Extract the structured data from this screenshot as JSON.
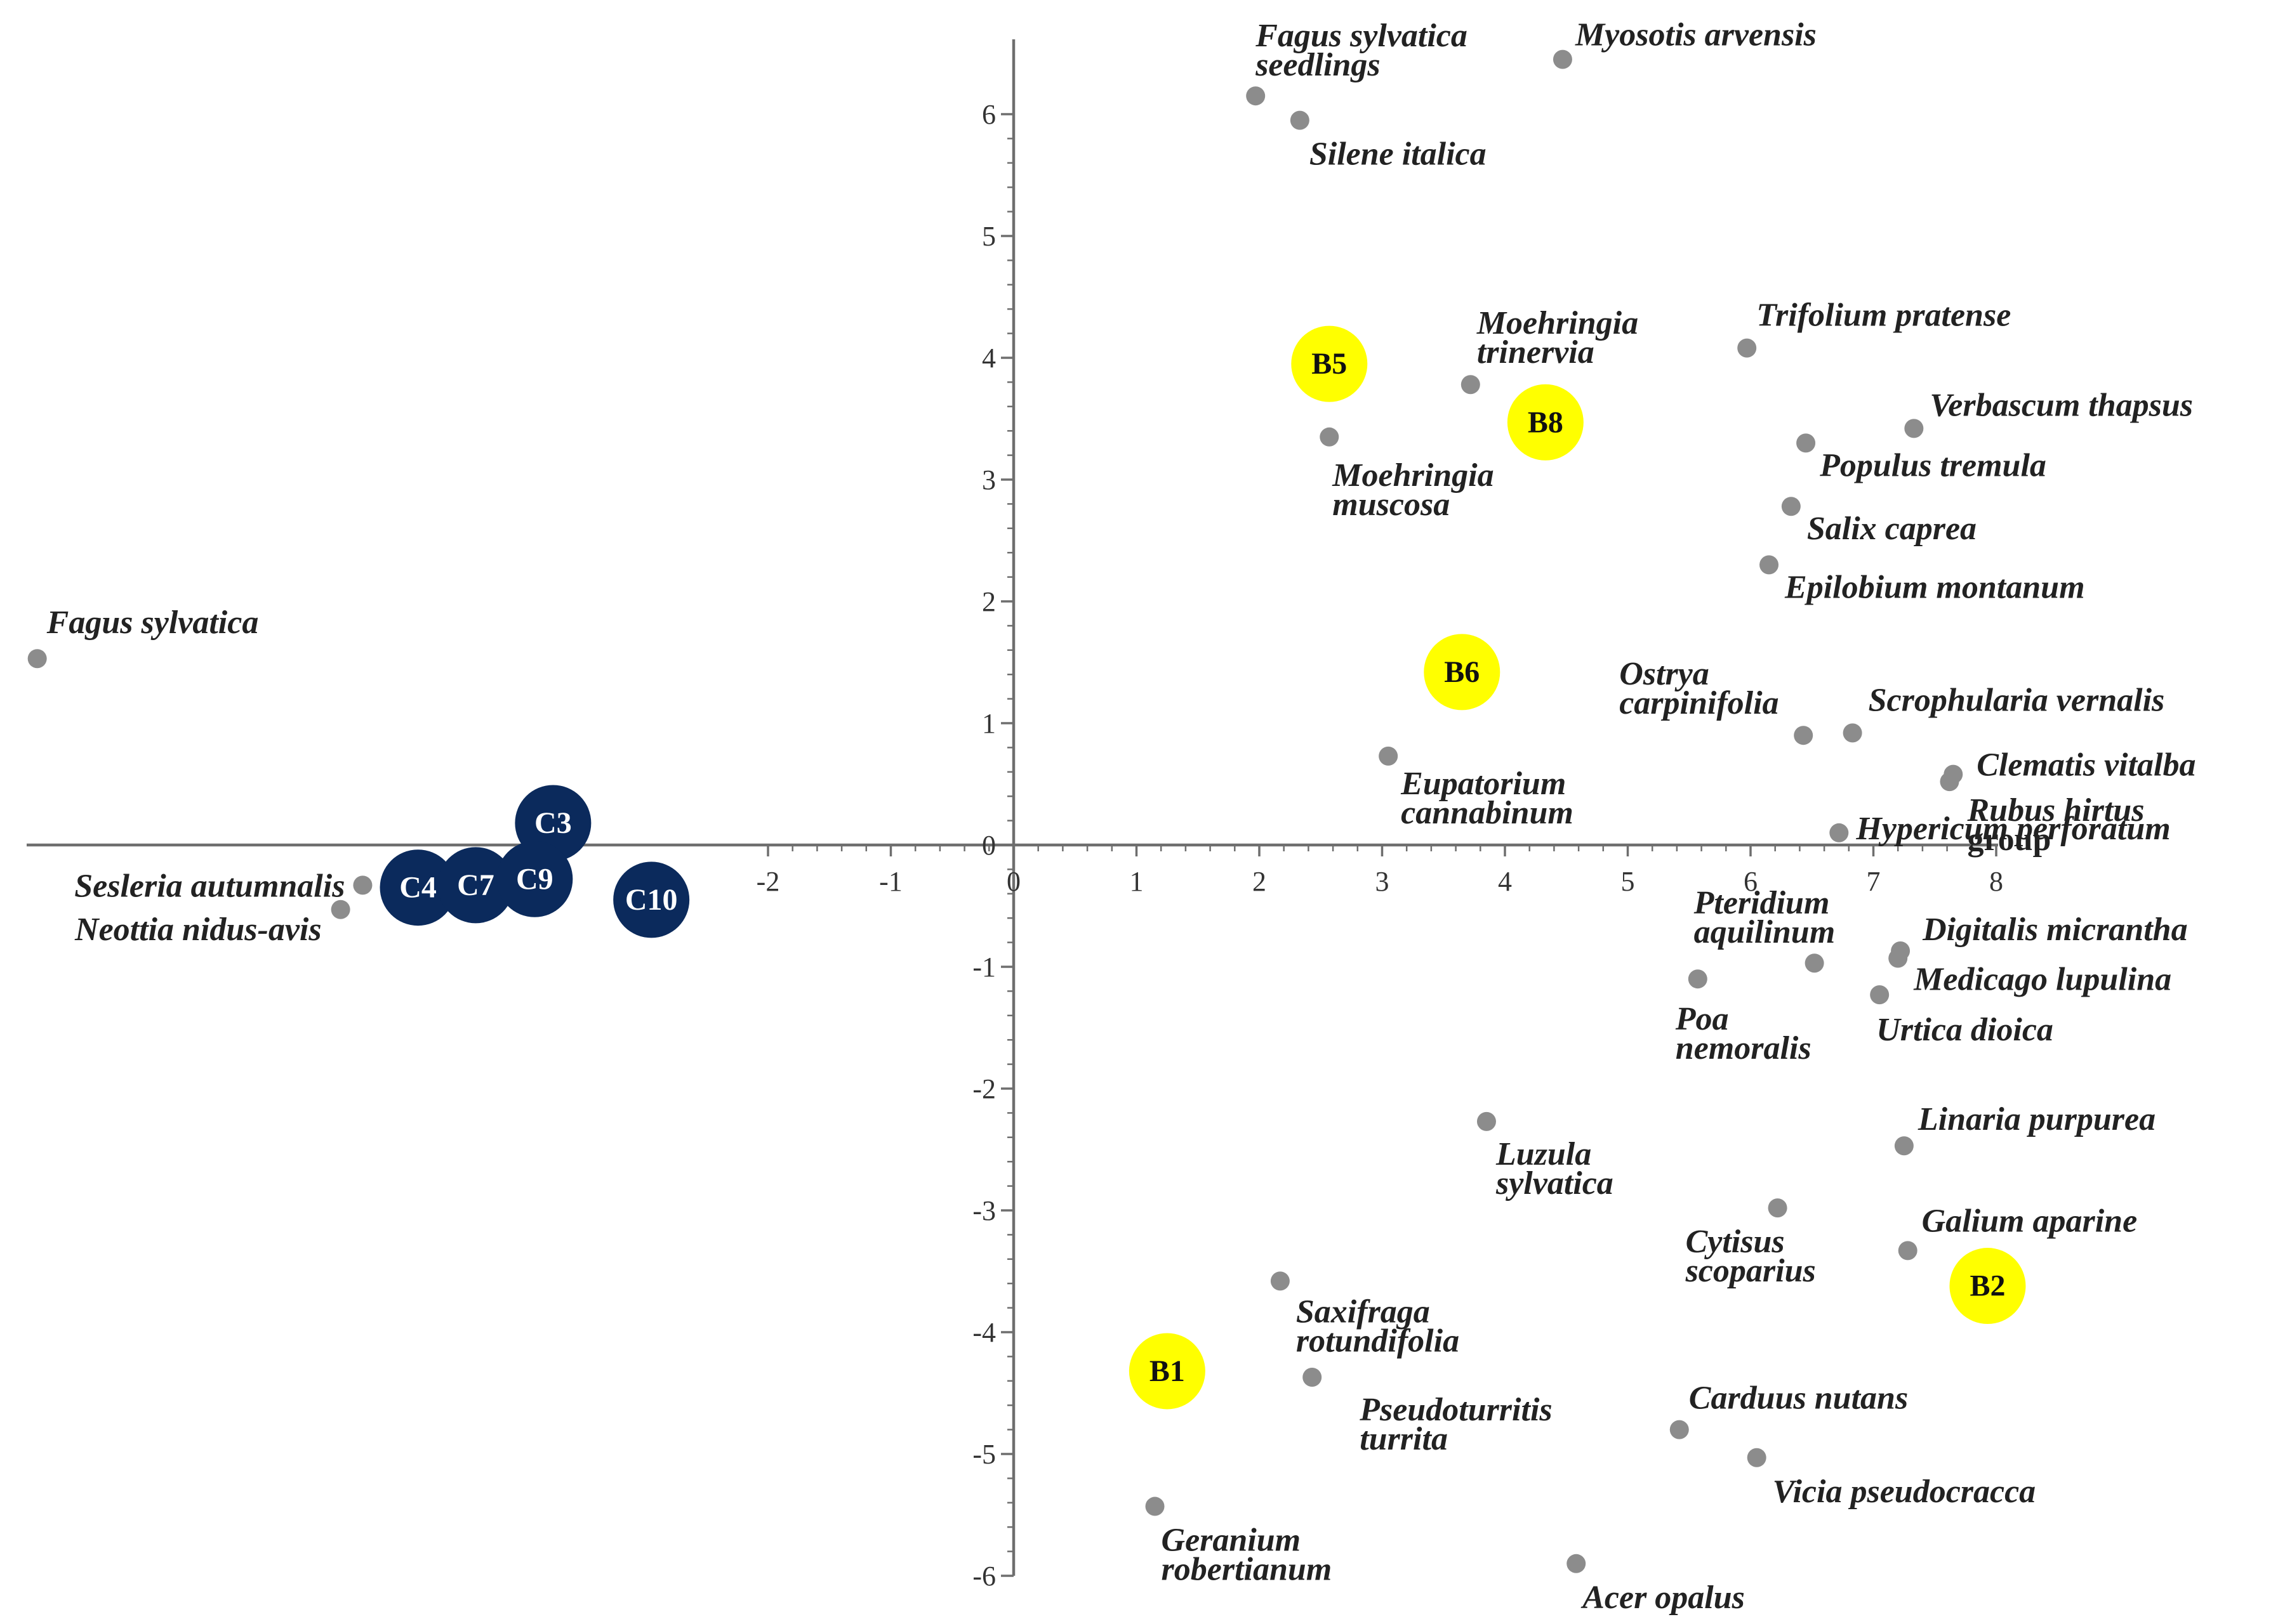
{
  "chart_data": {
    "type": "scatter",
    "title": "",
    "xlabel": "",
    "ylabel": "",
    "xlim": [
      -8,
      8
    ],
    "ylim": [
      -6,
      6.5
    ],
    "x_ticks": [
      -2,
      -1,
      0,
      1,
      2,
      3,
      4,
      5,
      6,
      7,
      8
    ],
    "y_ticks": [
      -6,
      -5,
      -4,
      -3,
      -2,
      -1,
      0,
      1,
      2,
      3,
      4,
      5,
      6
    ],
    "colors": {
      "species_point": "#8c8c8c",
      "site_b": "#ffff00",
      "site_c": "#0b2a5c",
      "site_b_text": "#111111",
      "site_c_text": "#ffffff",
      "axis": "#6e6e6e"
    },
    "species": [
      {
        "lines": [
          "Fagus sylvatica",
          "seedlings"
        ],
        "x": 1.97,
        "y": 6.15
      },
      {
        "lines": [
          "Myosotis arvensis"
        ],
        "x": 4.47,
        "y": 6.45
      },
      {
        "lines": [
          "Silene italica"
        ],
        "x": 2.33,
        "y": 5.95
      },
      {
        "lines": [
          "Moehringia",
          "trinervia"
        ],
        "x": 3.72,
        "y": 3.78
      },
      {
        "lines": [
          "Trifolium pratense"
        ],
        "x": 5.97,
        "y": 4.08
      },
      {
        "lines": [
          "Verbascum thapsus"
        ],
        "x": 7.33,
        "y": 3.42
      },
      {
        "lines": [
          "Populus tremula"
        ],
        "x": 6.45,
        "y": 3.3
      },
      {
        "lines": [
          "Moehringia",
          "muscosa"
        ],
        "x": 2.57,
        "y": 3.35
      },
      {
        "lines": [
          "Salix caprea"
        ],
        "x": 6.33,
        "y": 2.78
      },
      {
        "lines": [
          "Epilobium montanum"
        ],
        "x": 6.15,
        "y": 2.3
      },
      {
        "lines": [
          "Fagus sylvatica"
        ],
        "x": -7.95,
        "y": 1.53
      },
      {
        "lines": [
          "Ostrya",
          "carpinifolia"
        ],
        "x": 6.43,
        "y": 0.9
      },
      {
        "lines": [
          "Scrophularia vernalis"
        ],
        "x": 6.83,
        "y": 0.92
      },
      {
        "lines": [
          "Clematis vitalba"
        ],
        "x": 7.65,
        "y": 0.58
      },
      {
        "lines": [
          "Rubus hirtus",
          "group"
        ],
        "x": 7.62,
        "y": 0.52
      },
      {
        "lines": [
          "Eupatorium",
          "cannabinum"
        ],
        "x": 3.05,
        "y": 0.73
      },
      {
        "lines": [
          "Hypericum perforatum"
        ],
        "x": 6.72,
        "y": 0.1
      },
      {
        "lines": [
          "Sesleria autumnalis"
        ],
        "x": -5.3,
        "y": -0.33
      },
      {
        "lines": [
          "Neottia nidus-avis"
        ],
        "x": -5.48,
        "y": -0.53
      },
      {
        "lines": [
          "Pteridium",
          "aquilinum"
        ],
        "x": 6.52,
        "y": -0.97
      },
      {
        "lines": [
          "Digitalis micrantha"
        ],
        "x": 7.22,
        "y": -0.87
      },
      {
        "lines": [
          "Medicago lupulina"
        ],
        "x": 7.2,
        "y": -0.93
      },
      {
        "lines": [
          "Poa",
          "nemoralis"
        ],
        "x": 5.57,
        "y": -1.1
      },
      {
        "lines": [
          "Urtica dioica"
        ],
        "x": 7.05,
        "y": -1.23
      },
      {
        "lines": [
          "Luzula",
          "sylvatica"
        ],
        "x": 3.85,
        "y": -2.27
      },
      {
        "lines": [
          "Linaria purpurea"
        ],
        "x": 7.25,
        "y": -2.47
      },
      {
        "lines": [
          "Cytisus",
          "scoparius"
        ],
        "x": 6.22,
        "y": -2.98
      },
      {
        "lines": [
          "Galium aparine"
        ],
        "x": 7.28,
        "y": -3.33
      },
      {
        "lines": [
          "Saxifraga",
          "rotundifolia"
        ],
        "x": 2.17,
        "y": -3.58
      },
      {
        "lines": [
          "Pseudoturritis",
          "turrita"
        ],
        "x": 2.43,
        "y": -4.37
      },
      {
        "lines": [
          "Carduus nutans"
        ],
        "x": 5.42,
        "y": -4.8
      },
      {
        "lines": [
          "Vicia pseudocracca"
        ],
        "x": 6.05,
        "y": -5.03
      },
      {
        "lines": [
          "Geranium",
          "robertianum"
        ],
        "x": 1.15,
        "y": -5.43
      },
      {
        "lines": [
          "Acer opalus"
        ],
        "x": 4.58,
        "y": -5.9
      }
    ],
    "sites": [
      {
        "label": "B5",
        "group": "B",
        "x": 2.57,
        "y": 3.95
      },
      {
        "label": "B8",
        "group": "B",
        "x": 4.33,
        "y": 3.47
      },
      {
        "label": "B6",
        "group": "B",
        "x": 3.65,
        "y": 1.42
      },
      {
        "label": "B2",
        "group": "B",
        "x": 7.93,
        "y": -3.62
      },
      {
        "label": "B1",
        "group": "B",
        "x": 1.25,
        "y": -4.32
      },
      {
        "label": "C3",
        "group": "C",
        "x": -3.75,
        "y": 0.18
      },
      {
        "label": "C4",
        "group": "C",
        "x": -4.85,
        "y": -0.35
      },
      {
        "label": "C7",
        "group": "C",
        "x": -4.38,
        "y": -0.33
      },
      {
        "label": "C9",
        "group": "C",
        "x": -3.9,
        "y": -0.28
      },
      {
        "label": "C10",
        "group": "C",
        "x": -2.95,
        "y": -0.45
      }
    ]
  }
}
